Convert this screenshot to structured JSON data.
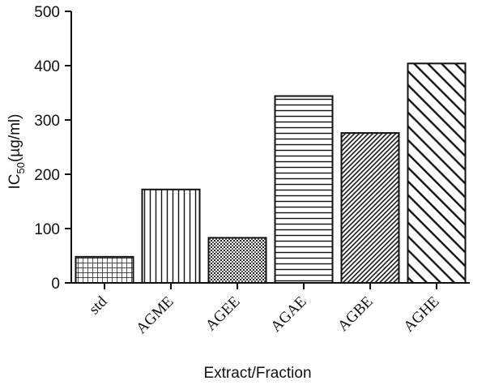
{
  "chart_data": {
    "type": "bar",
    "categories": [
      "std",
      "AGME",
      "AGEE",
      "AGAE",
      "AGBE",
      "AGHE"
    ],
    "values": [
      48,
      172,
      83,
      344,
      276,
      404
    ],
    "patterns": [
      "grid",
      "vertical",
      "dots",
      "horizontal",
      "fine-diagonal",
      "wide-diagonal"
    ],
    "xlabel": "Extract/Fraction",
    "ylabel": {
      "prefix": "IC",
      "subscript": "50",
      "suffix": "(µg/ml)"
    },
    "ylim": [
      0,
      500
    ],
    "yticks": [
      0,
      100,
      200,
      300,
      400,
      500
    ],
    "grid": false,
    "legend": "none",
    "colors": {
      "ink": "#111111",
      "fill": "#ffffff"
    }
  }
}
